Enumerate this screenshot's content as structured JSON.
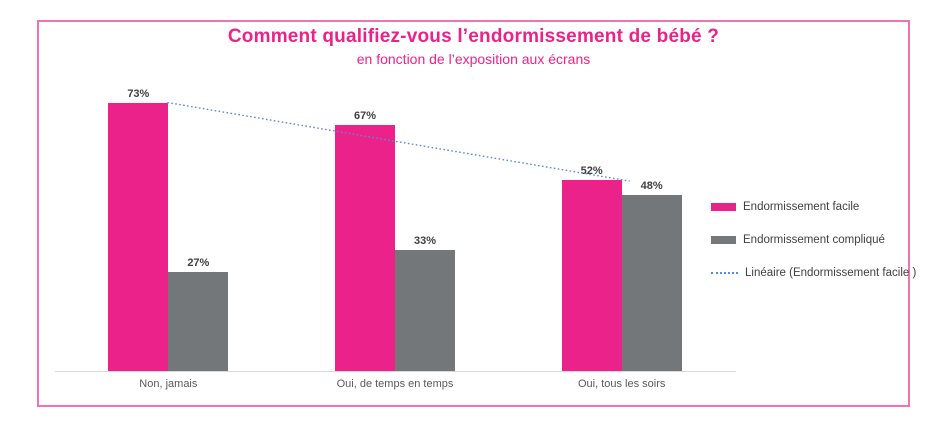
{
  "title": "Comment qualifiez-vous l’endormissement de bébé ?",
  "subtitle": "en fonction de l’exposition aux écrans",
  "colors": {
    "accent_pink": "#EB2289",
    "border_pink": "#F172AE",
    "bar_gray": "#747779",
    "trend_blue": "#5B8BD5",
    "data_label": "#404040",
    "axis_text": "#595959",
    "axis_line": "#D9D9D9"
  },
  "chart_data": {
    "type": "bar",
    "categories": [
      "Non, jamais",
      "Oui, de temps en temps",
      "Oui, tous les soirs"
    ],
    "series": [
      {
        "name": "Endormissement facile",
        "color": "#EB2289",
        "values": [
          73,
          67,
          52
        ]
      },
      {
        "name": "Endormissement compliqué",
        "color": "#747779",
        "values": [
          27,
          33,
          48
        ]
      }
    ],
    "data_labels": [
      "73%",
      "27%",
      "67%",
      "33%",
      "52%",
      "48%"
    ],
    "data_label_format": "percent",
    "trendline": {
      "label": "Linéaire (Endormissement facile )",
      "series": "Endormissement facile",
      "color": "#5B8BD5",
      "style": "dotted",
      "fitted_values": [
        74.5,
        64,
        53.5
      ]
    },
    "ylim": [
      0,
      100
    ],
    "grid": false,
    "y_axis_visible": false,
    "legend_position": "right"
  },
  "legend": {
    "items": [
      {
        "swatch": "pink-rect"
      },
      {
        "swatch": "gray-rect"
      },
      {
        "swatch": "blue-dotted-line"
      }
    ]
  }
}
